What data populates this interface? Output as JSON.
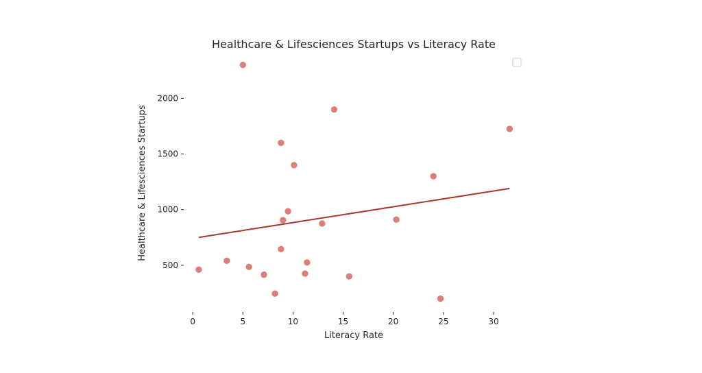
{
  "chart_data": {
    "type": "scatter",
    "title": "Healthcare & Lifesciences Startups vs Literacy Rate",
    "xlabel": "Literacy Rate",
    "ylabel": "Healthcare & Lifesciences Startups",
    "xlim": [
      -0.9,
      32.6
    ],
    "ylim": [
      80,
      2360
    ],
    "xticks": [
      0,
      5,
      10,
      15,
      20,
      25,
      30
    ],
    "yticks": [
      500,
      1000,
      1500,
      2000
    ],
    "grid": false,
    "legend": "top-right",
    "points": [
      {
        "x": 0.6,
        "y": 460
      },
      {
        "x": 3.4,
        "y": 540
      },
      {
        "x": 5.0,
        "y": 2300
      },
      {
        "x": 5.6,
        "y": 485
      },
      {
        "x": 7.1,
        "y": 415
      },
      {
        "x": 8.2,
        "y": 245
      },
      {
        "x": 8.8,
        "y": 1600
      },
      {
        "x": 8.8,
        "y": 645
      },
      {
        "x": 9.0,
        "y": 905
      },
      {
        "x": 9.5,
        "y": 985
      },
      {
        "x": 10.1,
        "y": 1400
      },
      {
        "x": 11.2,
        "y": 425
      },
      {
        "x": 11.4,
        "y": 525
      },
      {
        "x": 12.9,
        "y": 875
      },
      {
        "x": 14.1,
        "y": 1900
      },
      {
        "x": 15.6,
        "y": 400
      },
      {
        "x": 20.3,
        "y": 910
      },
      {
        "x": 24.0,
        "y": 1300
      },
      {
        "x": 24.7,
        "y": 200
      },
      {
        "x": 31.6,
        "y": 1725
      }
    ],
    "trendline": {
      "x": [
        0.6,
        31.6
      ],
      "y": [
        750,
        1190
      ]
    },
    "colors": {
      "points": "#d9726b",
      "trendline": "#a63a2e"
    }
  }
}
